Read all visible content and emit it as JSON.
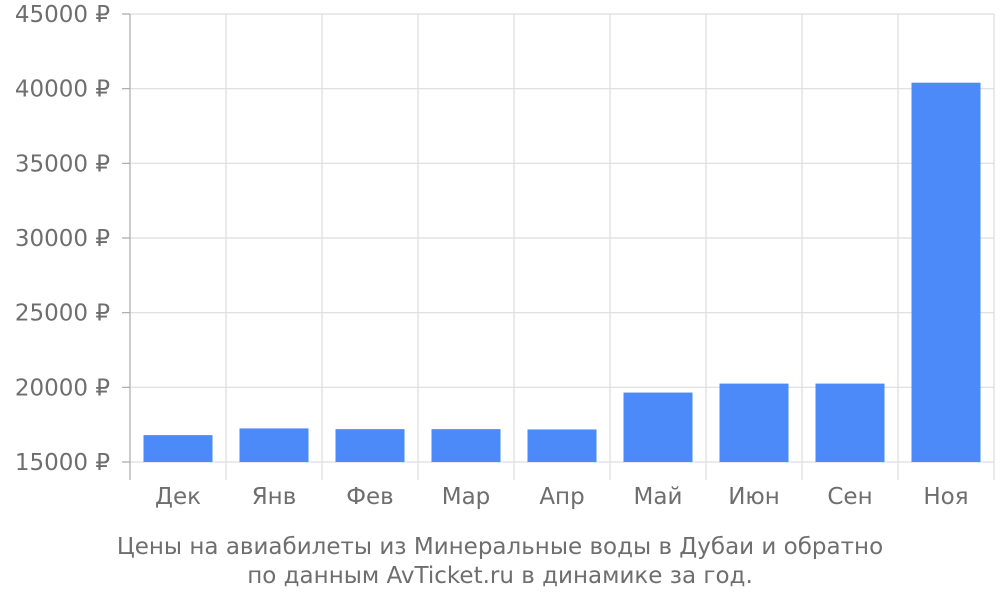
{
  "chart_data": {
    "type": "bar",
    "categories": [
      "Дек",
      "Янв",
      "Фев",
      "Мар",
      "Апр",
      "Май",
      "Июн",
      "Сен",
      "Ноя"
    ],
    "values": [
      16800,
      17250,
      17200,
      17200,
      17180,
      19650,
      20250,
      20250,
      40400
    ],
    "ylim": [
      15000,
      45000
    ],
    "yticks": [
      15000,
      20000,
      25000,
      30000,
      35000,
      40000,
      45000
    ],
    "ytick_labels": [
      "15000 ₽",
      "20000 ₽",
      "25000 ₽",
      "30000 ₽",
      "35000 ₽",
      "40000 ₽",
      "45000 ₽"
    ],
    "grid": true,
    "bar_color": "#4d8af9",
    "grid_color": "#dddddd",
    "text_color": "#6e6e6e"
  },
  "caption": {
    "line1": "Цены на авиабилеты из Минеральные воды в Дубаи и обратно",
    "line2": "по данным AvTicket.ru в динамике за год."
  }
}
